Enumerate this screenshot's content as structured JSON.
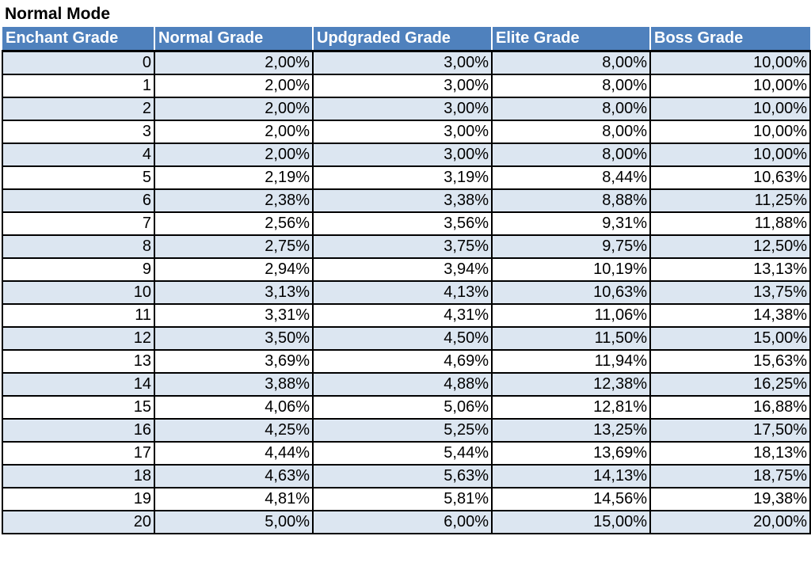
{
  "title": "Normal Mode",
  "table": {
    "headers": [
      "Enchant Grade",
      "Normal Grade",
      "Updgraded Grade",
      "Elite Grade",
      "Boss Grade"
    ],
    "rows": [
      [
        "0",
        "2,00%",
        "3,00%",
        "8,00%",
        "10,00%"
      ],
      [
        "1",
        "2,00%",
        "3,00%",
        "8,00%",
        "10,00%"
      ],
      [
        "2",
        "2,00%",
        "3,00%",
        "8,00%",
        "10,00%"
      ],
      [
        "3",
        "2,00%",
        "3,00%",
        "8,00%",
        "10,00%"
      ],
      [
        "4",
        "2,00%",
        "3,00%",
        "8,00%",
        "10,00%"
      ],
      [
        "5",
        "2,19%",
        "3,19%",
        "8,44%",
        "10,63%"
      ],
      [
        "6",
        "2,38%",
        "3,38%",
        "8,88%",
        "11,25%"
      ],
      [
        "7",
        "2,56%",
        "3,56%",
        "9,31%",
        "11,88%"
      ],
      [
        "8",
        "2,75%",
        "3,75%",
        "9,75%",
        "12,50%"
      ],
      [
        "9",
        "2,94%",
        "3,94%",
        "10,19%",
        "13,13%"
      ],
      [
        "10",
        "3,13%",
        "4,13%",
        "10,63%",
        "13,75%"
      ],
      [
        "11",
        "3,31%",
        "4,31%",
        "11,06%",
        "14,38%"
      ],
      [
        "12",
        "3,50%",
        "4,50%",
        "11,50%",
        "15,00%"
      ],
      [
        "13",
        "3,69%",
        "4,69%",
        "11,94%",
        "15,63%"
      ],
      [
        "14",
        "3,88%",
        "4,88%",
        "12,38%",
        "16,25%"
      ],
      [
        "15",
        "4,06%",
        "5,06%",
        "12,81%",
        "16,88%"
      ],
      [
        "16",
        "4,25%",
        "5,25%",
        "13,25%",
        "17,50%"
      ],
      [
        "17",
        "4,44%",
        "5,44%",
        "13,69%",
        "18,13%"
      ],
      [
        "18",
        "4,63%",
        "5,63%",
        "14,13%",
        "18,75%"
      ],
      [
        "19",
        "4,81%",
        "5,81%",
        "14,56%",
        "19,38%"
      ],
      [
        "20",
        "5,00%",
        "6,00%",
        "15,00%",
        "20,00%"
      ]
    ]
  },
  "colors": {
    "header_bg": "#4f81bd",
    "header_text": "#ffffff",
    "band_row": "#dce6f1",
    "plain_row": "#ffffff",
    "grid_line": "#000000"
  }
}
